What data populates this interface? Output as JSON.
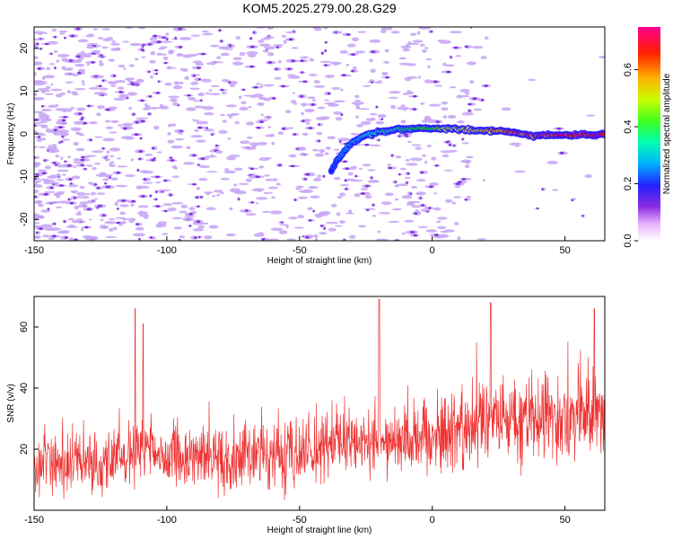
{
  "title": "KOM5.2025.279.00.28.G29",
  "colors": {
    "signal": "#ee3333",
    "frame": "#000000",
    "noise": "#c9a8f5",
    "noise_dark": "#7722dd"
  },
  "chart_data": [
    {
      "type": "heatmap",
      "name": "spectrogram",
      "xlabel": "Height of straight line (km)",
      "ylabel": "Frequency (Hz)",
      "xlim": [
        -150,
        65
      ],
      "ylim": [
        -25,
        25
      ],
      "xticks": [
        -150,
        -100,
        -50,
        0,
        50
      ],
      "yticks": [
        -20,
        -10,
        0,
        10,
        20
      ],
      "colorbar": {
        "label": "Normalized spectral amplitude",
        "range": [
          0,
          0.75
        ],
        "ticks": [
          0.0,
          0.2,
          0.4,
          0.6
        ]
      },
      "signal_track": [
        {
          "x": -38,
          "y": -8.5
        },
        {
          "x": -35,
          "y": -5.5
        },
        {
          "x": -31,
          "y": -2.5
        },
        {
          "x": -26,
          "y": -0.5
        },
        {
          "x": -21,
          "y": 0.3
        },
        {
          "x": -16,
          "y": 0.9
        },
        {
          "x": -10,
          "y": 1.2
        },
        {
          "x": 0,
          "y": 1.3
        },
        {
          "x": 10,
          "y": 1.0
        },
        {
          "x": 20,
          "y": 0.7
        },
        {
          "x": 30,
          "y": 0.5
        },
        {
          "x": 35,
          "y": -0.2
        },
        {
          "x": 40,
          "y": -0.4
        },
        {
          "x": 50,
          "y": -0.3
        },
        {
          "x": 65,
          "y": -0.2
        }
      ]
    },
    {
      "type": "line",
      "name": "snr",
      "xlabel": "Height of straight line (km)",
      "ylabel": "SNR (v/v)",
      "xlim": [
        -150,
        65
      ],
      "ylim": [
        0,
        70
      ],
      "xticks": [
        -150,
        -100,
        -50,
        0,
        50
      ],
      "yticks": [
        20,
        40,
        60
      ],
      "trend": {
        "x": [
          -150,
          -120,
          -110,
          -100,
          -80,
          -50,
          -20,
          0,
          20,
          40,
          65
        ],
        "y": [
          14,
          16,
          20,
          17,
          17,
          19,
          22,
          25,
          29,
          30,
          30
        ]
      },
      "peaks": [
        {
          "x": -112,
          "y": 66
        },
        {
          "x": -109,
          "y": 61
        },
        {
          "x": -20,
          "y": 69
        },
        {
          "x": 22,
          "y": 68
        },
        {
          "x": 61,
          "y": 66
        }
      ]
    }
  ]
}
